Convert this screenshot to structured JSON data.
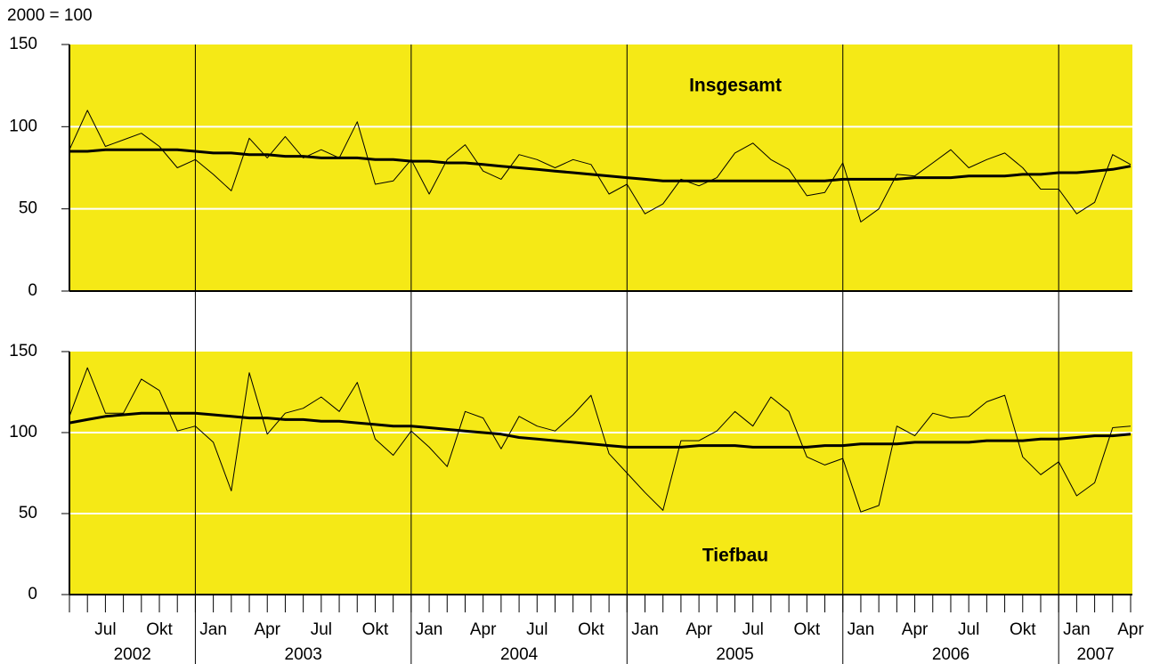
{
  "unit_label": "2000 = 100",
  "chart_data": [
    {
      "type": "line",
      "title": "Insgesamt",
      "ylim": [
        0,
        150
      ],
      "yticks": [
        0,
        50,
        100,
        150
      ],
      "grid": true,
      "background": "#f5e916",
      "series": [
        {
          "color": "#000000",
          "width": 1,
          "values": [
            86,
            110,
            88,
            92,
            96,
            88,
            75,
            80,
            71,
            61,
            93,
            81,
            94,
            81,
            86,
            81,
            103,
            65,
            67,
            80,
            59,
            80,
            89,
            73,
            68,
            83,
            80,
            75,
            80,
            77,
            59,
            65,
            47,
            53,
            68,
            64,
            69,
            84,
            90,
            80,
            74,
            58,
            60,
            78,
            42,
            50,
            71,
            70,
            78,
            86,
            75,
            80,
            84,
            75,
            62,
            62,
            47,
            54,
            83,
            77
          ]
        },
        {
          "color": "#000000",
          "width": 3,
          "values": [
            85,
            85,
            86,
            86,
            86,
            86,
            86,
            85,
            84,
            84,
            83,
            83,
            82,
            82,
            81,
            81,
            81,
            80,
            80,
            79,
            79,
            78,
            78,
            77,
            76,
            75,
            74,
            73,
            72,
            71,
            70,
            69,
            68,
            67,
            67,
            67,
            67,
            67,
            67,
            67,
            67,
            67,
            67,
            68,
            68,
            68,
            68,
            69,
            69,
            69,
            70,
            70,
            70,
            71,
            71,
            72,
            72,
            73,
            74,
            76
          ]
        }
      ]
    },
    {
      "type": "line",
      "title": "Tiefbau",
      "ylim": [
        0,
        150
      ],
      "yticks": [
        0,
        50,
        100,
        150
      ],
      "grid": true,
      "background": "#f5e916",
      "categories": [
        null,
        null,
        "Jul",
        null,
        null,
        "Okt",
        null,
        null,
        "Jan",
        null,
        null,
        "Apr",
        null,
        null,
        "Jul",
        null,
        null,
        "Okt",
        null,
        null,
        "Jan",
        null,
        null,
        "Apr",
        null,
        null,
        "Jul",
        null,
        null,
        "Okt",
        null,
        null,
        "Jan",
        null,
        null,
        "Apr",
        null,
        null,
        "Jul",
        null,
        null,
        "Okt",
        null,
        null,
        "Jan",
        null,
        null,
        "Apr",
        null,
        null,
        "Jul",
        null,
        null,
        "Okt",
        null,
        null,
        "Jan",
        null,
        null,
        "Apr"
      ],
      "years": [
        "2002",
        "2003",
        "2004",
        "2005",
        "2006",
        "2007"
      ],
      "series": [
        {
          "color": "#000000",
          "width": 1,
          "values": [
            110,
            140,
            112,
            112,
            133,
            126,
            101,
            104,
            94,
            64,
            137,
            99,
            112,
            115,
            122,
            113,
            131,
            96,
            86,
            101,
            91,
            79,
            113,
            109,
            90,
            110,
            104,
            101,
            111,
            123,
            87,
            75,
            63,
            52,
            95,
            95,
            101,
            113,
            104,
            122,
            113,
            85,
            80,
            84,
            51,
            55,
            104,
            98,
            112,
            109,
            110,
            119,
            123,
            85,
            74,
            82,
            61,
            69,
            103,
            104
          ]
        },
        {
          "color": "#000000",
          "width": 3,
          "values": [
            106,
            108,
            110,
            111,
            112,
            112,
            112,
            112,
            111,
            110,
            109,
            109,
            108,
            108,
            107,
            107,
            106,
            105,
            104,
            104,
            103,
            102,
            101,
            100,
            99,
            97,
            96,
            95,
            94,
            93,
            92,
            91,
            91,
            91,
            91,
            92,
            92,
            92,
            91,
            91,
            91,
            91,
            92,
            92,
            93,
            93,
            93,
            94,
            94,
            94,
            94,
            95,
            95,
            95,
            96,
            96,
            97,
            98,
            98,
            99
          ]
        }
      ]
    }
  ]
}
